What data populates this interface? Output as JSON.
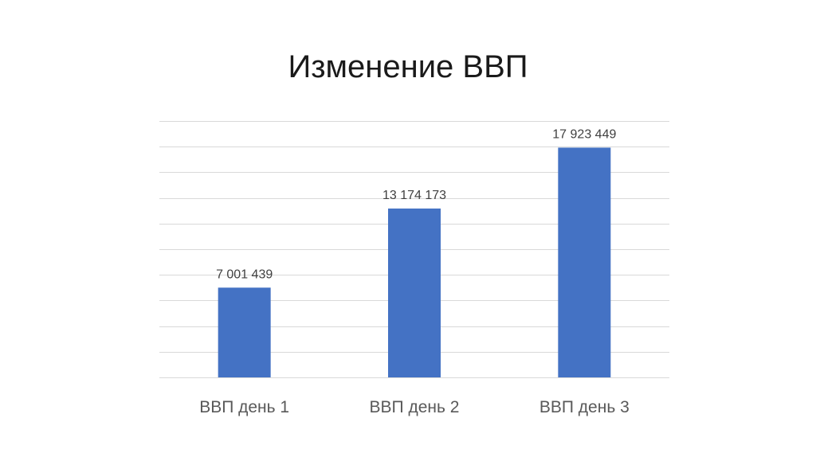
{
  "chart_data": {
    "type": "bar",
    "title": "Изменение ВВП",
    "categories": [
      "ВВП день 1",
      "ВВП день 2",
      "ВВП день 3"
    ],
    "values": [
      7001439,
      13174173,
      17923449
    ],
    "data_labels": [
      "7 001 439",
      "13 174 173",
      "17 923 449"
    ],
    "ylim": [
      0,
      20000000
    ],
    "grid": true,
    "gridline_count": 10,
    "legend": "none",
    "colors": {
      "bar": "#4472c4",
      "grid": "#d9d9d9"
    }
  }
}
